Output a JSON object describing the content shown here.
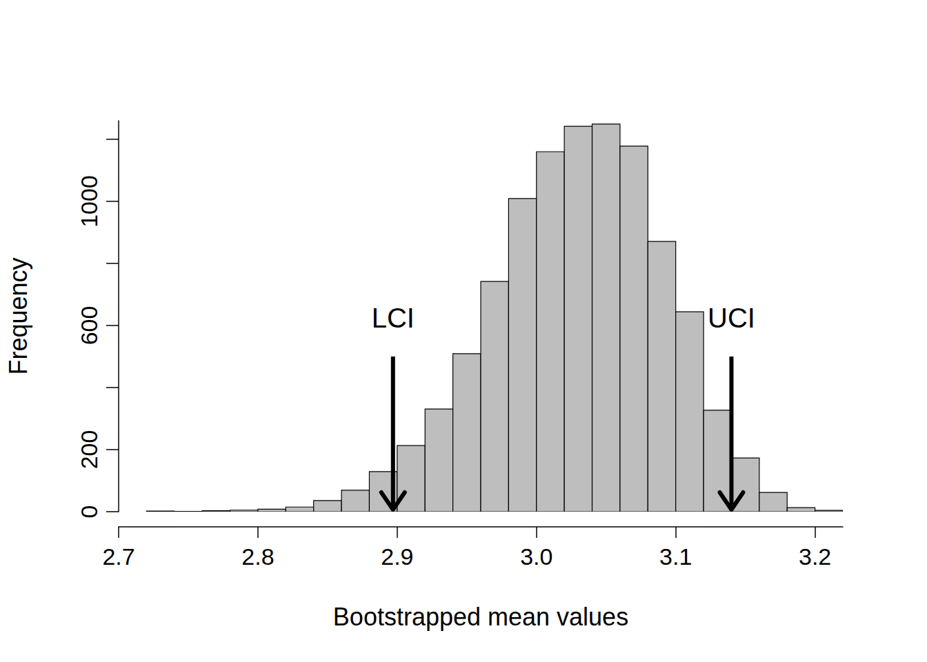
{
  "chart_data": {
    "type": "histogram",
    "xlabel": "Bootstrapped mean values",
    "ylabel": "Frequency",
    "bins": [
      2.72,
      2.74,
      2.76,
      2.78,
      2.8,
      2.82,
      2.84,
      2.86,
      2.88,
      2.9,
      2.92,
      2.94,
      2.96,
      2.98,
      3.0,
      3.02,
      3.04,
      3.06,
      3.08,
      3.1,
      3.12,
      3.14,
      3.16,
      3.18,
      3.2,
      3.22
    ],
    "values": [
      2,
      1,
      3,
      5,
      8,
      15,
      36,
      69,
      129,
      213,
      331,
      509,
      742,
      1009,
      1160,
      1242,
      1249,
      1178,
      871,
      644,
      327,
      173,
      62,
      13,
      4
    ],
    "color": "#bebebe",
    "xlim": [
      2.7,
      3.22
    ],
    "xticks": [
      2.7,
      2.8,
      2.9,
      {
        "value": 3,
        "label": "3.0"
      },
      3.1,
      3.2
    ],
    "ylim": [
      0,
      1260
    ],
    "yticks": [
      0,
      200,
      {
        "value": 400,
        "label": null
      },
      600,
      {
        "value": 800,
        "label": null
      },
      1000,
      {
        "value": 1200,
        "label": null
      }
    ],
    "grid": false,
    "annotations": [
      {
        "text": "LCI",
        "x": 2.897,
        "arrow_from": 500,
        "text_y": 624
      },
      {
        "text": "UCI",
        "x": 3.14,
        "arrow_from": 500,
        "text_y": 624
      }
    ]
  }
}
